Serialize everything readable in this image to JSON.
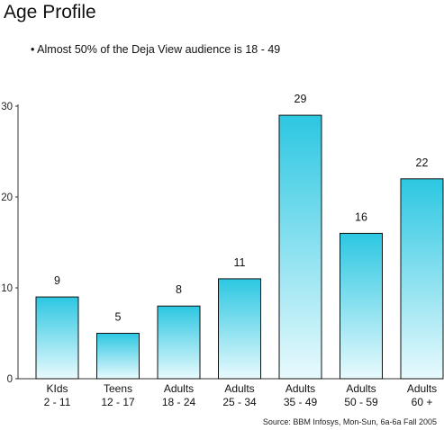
{
  "chart_data": {
    "type": "bar",
    "title": "Age Profile",
    "subtitle": "Almost 50% of the Deja View audience is 18 - 49",
    "source": "Source: BBM Infosys, Mon-Sun, 6a-6a Fall 2005",
    "categories": [
      [
        "KIds",
        "2 - 11"
      ],
      [
        "Teens",
        "12 - 17"
      ],
      [
        "Adults",
        "18 - 24"
      ],
      [
        "Adults",
        "25 - 34"
      ],
      [
        "Adults",
        "35 - 49"
      ],
      [
        "Adults",
        "50 - 59"
      ],
      [
        "Adults",
        "60 +"
      ]
    ],
    "values": [
      9,
      5,
      8,
      11,
      29,
      16,
      22
    ],
    "ylim": [
      0,
      30
    ],
    "yticks": [
      0,
      10,
      20,
      30
    ],
    "xlabel": "",
    "ylabel": "",
    "grid": false,
    "colors": {
      "bar_top": "#2cc7e2",
      "bar_bottom": "#e8fafd",
      "stroke": "#111111"
    }
  }
}
